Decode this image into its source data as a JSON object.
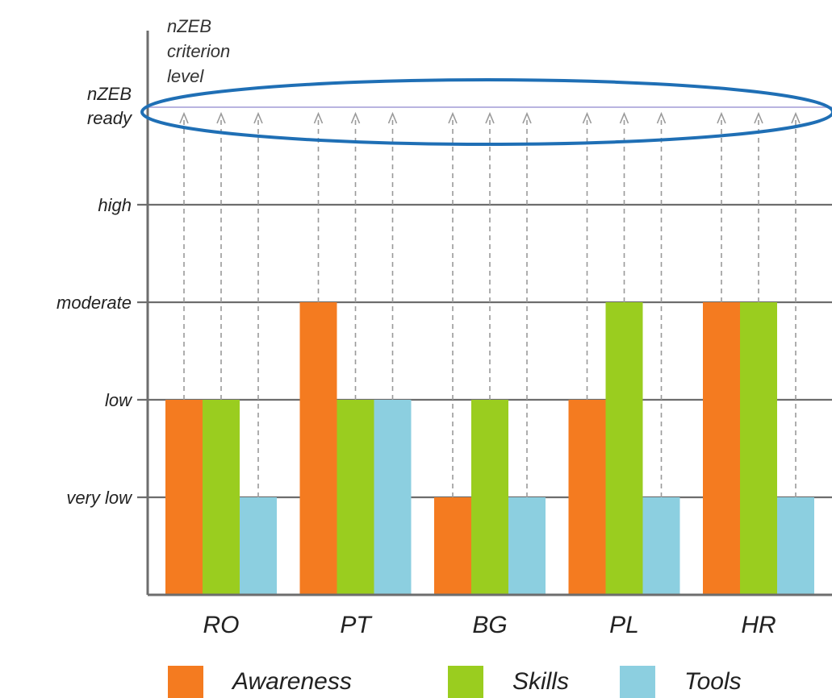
{
  "chart_data": {
    "type": "bar",
    "y_axis_title": [
      "nZEB",
      "criterion",
      "level"
    ],
    "y_levels": [
      {
        "label": "very low",
        "value": 1
      },
      {
        "label": "low",
        "value": 2
      },
      {
        "label": "moderate",
        "value": 3
      },
      {
        "label": "high",
        "value": 4
      },
      {
        "label": "nZEB ready",
        "value": 5,
        "label_lines": [
          "nZEB",
          "ready"
        ]
      }
    ],
    "ylim": [
      0,
      5
    ],
    "categories": [
      "RO",
      "PT",
      "BG",
      "PL",
      "HR"
    ],
    "series": [
      {
        "name": "Awareness",
        "color": "#f47b20",
        "values": [
          2,
          3,
          1,
          2,
          3
        ]
      },
      {
        "name": "Skills",
        "color": "#9acd1f",
        "values": [
          2,
          2,
          2,
          3,
          3
        ]
      },
      {
        "name": "Tools",
        "color": "#8ccfe0",
        "values": [
          1,
          2,
          1,
          1,
          1
        ]
      }
    ],
    "target_level": 5,
    "target_arrows": "dashed arrows from each bar up to nZEB ready",
    "highlight": "blue ellipse around nZEB ready line",
    "highlight_color": "#1f6fb5",
    "target_line_color": "#b9b4e0",
    "grid": true,
    "legend_position": "bottom"
  }
}
